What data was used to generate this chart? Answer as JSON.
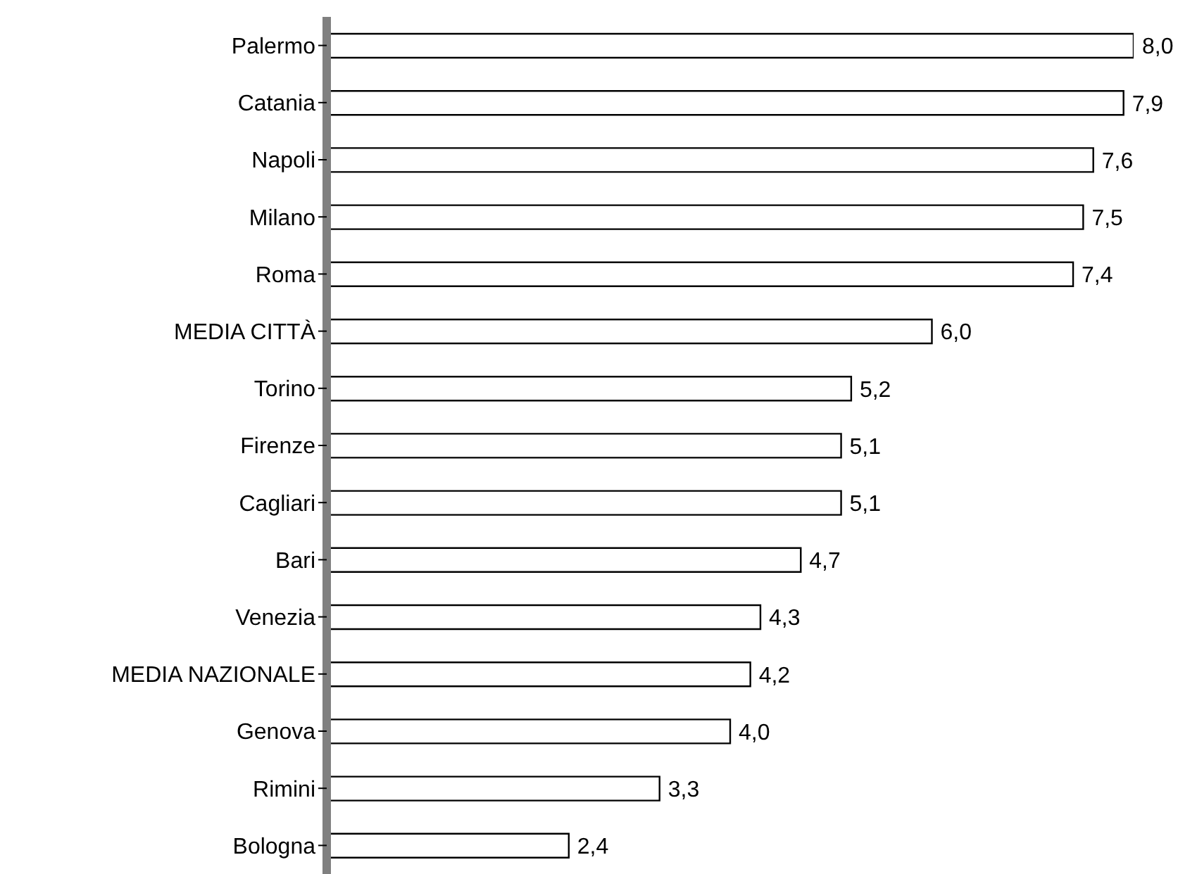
{
  "chart_data": {
    "type": "bar",
    "orientation": "horizontal",
    "tick_labels": "y",
    "categories": [
      "Palermo",
      "Catania",
      "Napoli",
      "Milano",
      "Roma",
      "MEDIA CITTÀ",
      "Torino",
      "Firenze",
      "Cagliari",
      "Bari",
      "Venezia",
      "MEDIA NAZIONALE",
      "Genova",
      "Rimini",
      "Bologna"
    ],
    "values": [
      8.0,
      7.9,
      7.6,
      7.5,
      7.4,
      6.0,
      5.2,
      5.1,
      5.1,
      4.7,
      4.3,
      4.2,
      4.0,
      3.3,
      2.4
    ],
    "value_labels": [
      "8,0",
      "7,9",
      "7,6",
      "7,5",
      "7,4",
      "6,0",
      "5,2",
      "5,1",
      "5,1",
      "4,7",
      "4,3",
      "4,2",
      "4,0",
      "3,3",
      "2,4"
    ],
    "color": "#ffffff"
  }
}
